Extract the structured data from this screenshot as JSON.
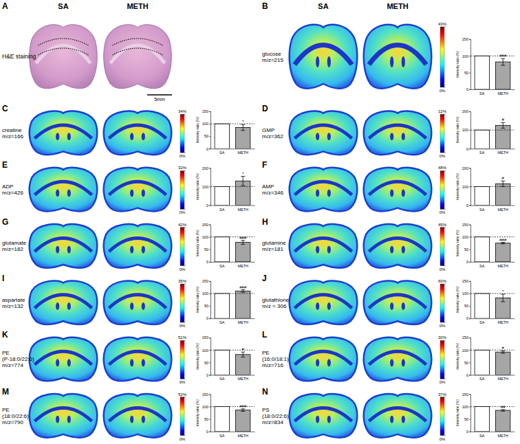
{
  "column_headers": [
    "SA",
    "METH"
  ],
  "panel_a": {
    "label": "A",
    "title": "H&E staining",
    "scale_bar": "5mm"
  },
  "chart_data": [
    {
      "type": "bar",
      "panel": "B",
      "title": [
        "glucose"
      ],
      "subtitle": "m/z=215",
      "categories": [
        "SA",
        "METH"
      ],
      "values": [
        100,
        82
      ],
      "errors": [
        null,
        10
      ],
      "colors": [
        "#ffffff",
        "#a6a6a6"
      ],
      "annotation": "###",
      "reference_line": 100,
      "y_label": "Intensity ratio (%)",
      "ylim": [
        0,
        150
      ],
      "yticks": [
        0,
        50,
        100,
        150
      ],
      "colorbar": {
        "range": [
          0,
          43
        ],
        "ticks": [
          {
            "value": 0,
            "label": "0%"
          },
          {
            "value": 43,
            "label": "43%"
          }
        ]
      }
    },
    {
      "type": "bar",
      "panel": "C",
      "title": [
        "creatine"
      ],
      "subtitle": "m/z=166",
      "categories": [
        "SA",
        "METH"
      ],
      "values": [
        100,
        85
      ],
      "errors": [
        null,
        12
      ],
      "colors": [
        "#ffffff",
        "#a6a6a6"
      ],
      "annotation": "*",
      "reference_line": 100,
      "y_label": "Intensity ratio (%)",
      "ylim": [
        0,
        150
      ],
      "yticks": [
        0,
        50,
        100,
        150
      ],
      "colorbar": {
        "range": [
          0,
          34
        ],
        "ticks": [
          {
            "value": 0,
            "label": "0%"
          },
          {
            "value": 34,
            "label": "34%"
          }
        ]
      }
    },
    {
      "type": "bar",
      "panel": "D",
      "title": [
        "GMP"
      ],
      "subtitle": "m/z=362",
      "categories": [
        "SA",
        "METH"
      ],
      "values": [
        100,
        125
      ],
      "errors": [
        null,
        15
      ],
      "colors": [
        "#ffffff",
        "#a6a6a6"
      ],
      "annotation": "#",
      "reference_line": 100,
      "y_label": "Intensity ratio (%)",
      "ylim": [
        0,
        200
      ],
      "yticks": [
        0,
        100,
        200
      ],
      "colorbar": {
        "range": [
          0,
          12
        ],
        "ticks": [
          {
            "value": 0,
            "label": "0%"
          },
          {
            "value": 12,
            "label": "12%"
          }
        ]
      }
    },
    {
      "type": "bar",
      "panel": "E",
      "title": [
        "ADP"
      ],
      "subtitle": "m/z=426",
      "categories": [
        "SA",
        "METH"
      ],
      "values": [
        100,
        130
      ],
      "errors": [
        null,
        25
      ],
      "colors": [
        "#ffffff",
        "#a6a6a6"
      ],
      "annotation": "*",
      "reference_line": 100,
      "y_label": "Intensity ratio (%)",
      "ylim": [
        0,
        200
      ],
      "yticks": [
        0,
        100,
        200
      ],
      "colorbar": {
        "range": [
          0,
          32
        ],
        "ticks": [
          {
            "value": 0,
            "label": "0%"
          },
          {
            "value": 32,
            "label": "32%"
          }
        ]
      }
    },
    {
      "type": "bar",
      "panel": "F",
      "title": [
        "AMP"
      ],
      "subtitle": "m/z=346",
      "categories": [
        "SA",
        "METH"
      ],
      "values": [
        100,
        115
      ],
      "errors": [
        null,
        15
      ],
      "colors": [
        "#ffffff",
        "#a6a6a6"
      ],
      "annotation": "#",
      "reference_line": 100,
      "y_label": "Intensity ratio (%)",
      "ylim": [
        0,
        200
      ],
      "yticks": [
        0,
        100,
        200
      ],
      "colorbar": {
        "range": [
          0,
          48
        ],
        "ticks": [
          {
            "value": 0,
            "label": "0%"
          },
          {
            "value": 48,
            "label": "48%"
          }
        ]
      }
    },
    {
      "type": "bar",
      "panel": "G",
      "title": [
        "glutamate"
      ],
      "subtitle": "m/z=182",
      "categories": [
        "SA",
        "METH"
      ],
      "values": [
        100,
        78
      ],
      "errors": [
        null,
        8
      ],
      "colors": [
        "#ffffff",
        "#a6a6a6"
      ],
      "annotation": "###",
      "reference_line": 100,
      "y_label": "Intensity ratio (%)",
      "ylim": [
        0,
        150
      ],
      "yticks": [
        0,
        50,
        100,
        150
      ],
      "colorbar": {
        "range": [
          0,
          42
        ],
        "ticks": [
          {
            "value": 0,
            "label": "0%"
          },
          {
            "value": 42,
            "label": "42%"
          }
        ]
      }
    },
    {
      "type": "bar",
      "panel": "H",
      "title": [
        "glutamine"
      ],
      "subtitle": "m/z=181",
      "categories": [
        "SA",
        "METH"
      ],
      "values": [
        100,
        75
      ],
      "errors": [
        null,
        3
      ],
      "colors": [
        "#ffffff",
        "#a6a6a6"
      ],
      "annotation": "###",
      "reference_line": 100,
      "y_label": "Intensity ratio (%)",
      "ylim": [
        0,
        150
      ],
      "yticks": [
        0,
        50,
        100,
        150
      ],
      "colorbar": {
        "range": [
          0,
          45
        ],
        "ticks": [
          {
            "value": 0,
            "label": "0%"
          },
          {
            "value": 45,
            "label": "45%"
          }
        ]
      }
    },
    {
      "type": "bar",
      "panel": "I",
      "title": [
        "aspartate"
      ],
      "subtitle": "m/z=132",
      "categories": [
        "SA",
        "METH"
      ],
      "values": [
        100,
        110
      ],
      "errors": [
        null,
        5
      ],
      "colors": [
        "#ffffff",
        "#a6a6a6"
      ],
      "annotation": "###",
      "reference_line": 100,
      "y_label": "Intensity ratio (%)",
      "ylim": [
        0,
        150
      ],
      "yticks": [
        0,
        50,
        100,
        150
      ],
      "colorbar": {
        "range": [
          0,
          35
        ],
        "ticks": [
          {
            "value": 0,
            "label": "0%"
          },
          {
            "value": 35,
            "label": "35%"
          }
        ]
      }
    },
    {
      "type": "bar",
      "panel": "J",
      "title": [
        "glutathione"
      ],
      "subtitle": "m/z = 306",
      "categories": [
        "SA",
        "METH"
      ],
      "values": [
        100,
        82
      ],
      "errors": [
        null,
        15
      ],
      "colors": [
        "#ffffff",
        "#a6a6a6"
      ],
      "annotation": "*",
      "reference_line": 100,
      "y_label": "Intensity ratio (%)",
      "ylim": [
        0,
        150
      ],
      "yticks": [
        0,
        50,
        100,
        150
      ],
      "colorbar": {
        "range": [
          0,
          60
        ],
        "ticks": [
          {
            "value": 0,
            "label": "0%"
          },
          {
            "value": 60,
            "label": "60%"
          }
        ]
      }
    },
    {
      "type": "bar",
      "panel": "K",
      "title": [
        "PE",
        "(P-18:0/22:6)"
      ],
      "subtitle": "m/z=774",
      "categories": [
        "SA",
        "METH"
      ],
      "values": [
        100,
        82
      ],
      "errors": [
        null,
        10
      ],
      "colors": [
        "#ffffff",
        "#a6a6a6"
      ],
      "annotation": "#",
      "reference_line": 100,
      "y_label": "Intensity ratio (%)",
      "ylim": [
        0,
        150
      ],
      "yticks": [
        0,
        50,
        100,
        150
      ],
      "colorbar": {
        "range": [
          0,
          51
        ],
        "ticks": [
          {
            "value": 0,
            "label": "0%"
          },
          {
            "value": 51,
            "label": "51%"
          }
        ]
      }
    },
    {
      "type": "bar",
      "panel": "L",
      "title": [
        "PE",
        "(16:0/18:1)"
      ],
      "subtitle": "m/z=716",
      "categories": [
        "SA",
        "METH"
      ],
      "values": [
        100,
        92
      ],
      "errors": [
        null,
        5
      ],
      "colors": [
        "#ffffff",
        "#a6a6a6"
      ],
      "annotation": "#",
      "reference_line": 100,
      "y_label": "Intensity ratio (%)",
      "ylim": [
        0,
        150
      ],
      "yticks": [
        0,
        50,
        100,
        150
      ],
      "colorbar": {
        "range": [
          0,
          30
        ],
        "ticks": [
          {
            "value": 0,
            "label": "0%"
          },
          {
            "value": 30,
            "label": "30%"
          }
        ]
      }
    },
    {
      "type": "bar",
      "panel": "M",
      "title": [
        "PE",
        "(18:0/22:6)"
      ],
      "subtitle": "m/z=790",
      "categories": [
        "SA",
        "METH"
      ],
      "values": [
        100,
        86
      ],
      "errors": [
        null,
        5
      ],
      "colors": [
        "#ffffff",
        "#a6a6a6"
      ],
      "annotation": "###",
      "reference_line": 100,
      "y_label": "Intensity ratio (%)",
      "ylim": [
        0,
        150
      ],
      "yticks": [
        0,
        50,
        100,
        150
      ],
      "colorbar": {
        "range": [
          0,
          52
        ],
        "ticks": [
          {
            "value": 0,
            "label": "0%"
          },
          {
            "value": 52,
            "label": "52%"
          }
        ]
      }
    },
    {
      "type": "bar",
      "panel": "N",
      "title": [
        "PS",
        "(18:0/22:6)"
      ],
      "subtitle": "m/z=834",
      "categories": [
        "SA",
        "METH"
      ],
      "values": [
        100,
        85
      ],
      "errors": [
        null,
        3
      ],
      "colors": [
        "#ffffff",
        "#a6a6a6"
      ],
      "annotation": "##",
      "reference_line": 100,
      "y_label": "Intensity ratio (%)",
      "ylim": [
        0,
        150
      ],
      "yticks": [
        0,
        50,
        100,
        150
      ],
      "colorbar": {
        "range": [
          0,
          37
        ],
        "ticks": [
          {
            "value": 0,
            "label": "0%"
          },
          {
            "value": 37,
            "label": "37%"
          }
        ]
      }
    }
  ]
}
